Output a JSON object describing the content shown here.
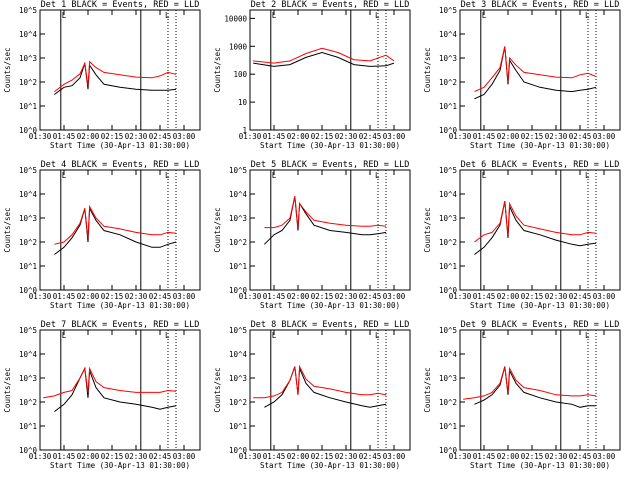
{
  "figure": {
    "x_tick_labels": [
      "01:30",
      "01:45",
      "02:00",
      "02:15",
      "02:30",
      "02:45",
      "03:00"
    ],
    "xlabel": "Start Time (30-Apr-13 01:30:00)",
    "ylabel": "Counts/sec",
    "colors": {
      "events": "#000000",
      "lld": "#ff0000"
    },
    "marker_label": "L"
  },
  "chart_data": [
    {
      "type": "line",
      "title": "Det 1 BLACK = Events, RED = LLD",
      "xlabel": "Start Time (30-Apr-13 01:30:00)",
      "ylabel": "Counts/sec",
      "ylog": true,
      "ylim": [
        1,
        100000
      ],
      "y_tick_labels": [
        "10^0",
        "10^1",
        "10^2",
        "10^3",
        "10^4",
        "10^5"
      ],
      "x": [
        "01:39",
        "01:45",
        "01:50",
        "01:55",
        "01:58",
        "02:00",
        "02:01",
        "02:05",
        "02:10",
        "02:20",
        "02:30",
        "02:40",
        "02:45",
        "02:50",
        "02:55"
      ],
      "series": [
        {
          "name": "Events",
          "values": [
            30,
            60,
            70,
            150,
            600,
            50,
            500,
            200,
            80,
            60,
            50,
            45,
            45,
            45,
            50
          ]
        },
        {
          "name": "LLD",
          "values": [
            40,
            80,
            120,
            220,
            600,
            70,
            700,
            400,
            250,
            200,
            160,
            150,
            180,
            250,
            210
          ]
        }
      ],
      "vlines_solid": [
        "01:43",
        "02:33"
      ],
      "vlines_dotted": [
        "02:50",
        "02:55"
      ]
    },
    {
      "type": "line",
      "title": "Det 2 BLACK = Events, RED = LLD",
      "xlabel": "Start Time (30-Apr-13 01:30:00)",
      "ylabel": "Counts/sec",
      "ylog": true,
      "ylim": [
        1,
        20000
      ],
      "y_tick_labels": [
        "1",
        "10",
        "100",
        "1000",
        "10000"
      ],
      "x": [
        "01:32",
        "01:45",
        "01:55",
        "02:05",
        "02:15",
        "02:25",
        "02:35",
        "02:45",
        "02:55",
        "03:00"
      ],
      "series": [
        {
          "name": "Events",
          "values": [
            250,
            190,
            220,
            400,
            600,
            400,
            220,
            190,
            200,
            250
          ]
        },
        {
          "name": "LLD",
          "values": [
            300,
            250,
            300,
            550,
            850,
            600,
            330,
            300,
            480,
            300
          ]
        }
      ],
      "vlines_solid": [
        "01:43",
        "02:33"
      ],
      "vlines_dotted": [
        "02:50",
        "02:55"
      ]
    },
    {
      "type": "line",
      "title": "Det 3 BLACK = Events, RED = LLD",
      "xlabel": "Start Time (30-Apr-13 01:30:00)",
      "ylabel": "Counts/sec",
      "ylog": true,
      "ylim": [
        1,
        100000
      ],
      "y_tick_labels": [
        "10^0",
        "10^1",
        "10^2",
        "10^3",
        "10^4",
        "10^5"
      ],
      "x": [
        "01:39",
        "01:45",
        "01:50",
        "01:55",
        "01:58",
        "02:00",
        "02:01",
        "02:05",
        "02:10",
        "02:20",
        "02:30",
        "02:40",
        "02:45",
        "02:50",
        "02:55"
      ],
      "series": [
        {
          "name": "Events",
          "values": [
            20,
            30,
            80,
            300,
            3000,
            80,
            800,
            300,
            100,
            60,
            45,
            40,
            45,
            50,
            60
          ]
        },
        {
          "name": "LLD",
          "values": [
            40,
            60,
            150,
            400,
            3000,
            100,
            1000,
            500,
            250,
            200,
            160,
            150,
            200,
            230,
            170
          ]
        }
      ],
      "vlines_solid": [
        "01:43",
        "02:33"
      ],
      "vlines_dotted": [
        "02:50",
        "02:55"
      ]
    },
    {
      "type": "line",
      "title": "Det 4 BLACK = Events, RED = LLD",
      "xlabel": "Start Time (30-Apr-13 01:30:00)",
      "ylabel": "Counts/sec",
      "ylog": true,
      "ylim": [
        1,
        100000
      ],
      "y_tick_labels": [
        "10^0",
        "10^1",
        "10^2",
        "10^3",
        "10^4",
        "10^5"
      ],
      "x": [
        "01:39",
        "01:45",
        "01:50",
        "01:55",
        "01:58",
        "02:00",
        "02:01",
        "02:05",
        "02:10",
        "02:20",
        "02:30",
        "02:40",
        "02:45",
        "02:50",
        "02:55"
      ],
      "series": [
        {
          "name": "Events",
          "values": [
            30,
            60,
            150,
            500,
            2500,
            100,
            2500,
            800,
            300,
            200,
            100,
            60,
            60,
            80,
            100
          ]
        },
        {
          "name": "LLD",
          "values": [
            80,
            100,
            200,
            600,
            2500,
            150,
            3000,
            1000,
            450,
            350,
            250,
            200,
            200,
            250,
            230
          ]
        }
      ],
      "vlines_solid": [
        "01:43",
        "02:33"
      ],
      "vlines_dotted": [
        "02:50",
        "02:55"
      ]
    },
    {
      "type": "line",
      "title": "Det 5 BLACK = Events, RED = LLD",
      "xlabel": "Start Time (30-Apr-13 01:30:00)",
      "ylabel": "Counts/sec",
      "ylog": true,
      "ylim": [
        1,
        100000
      ],
      "y_tick_labels": [
        "10^0",
        "10^1",
        "10^2",
        "10^3",
        "10^4",
        "10^5"
      ],
      "x": [
        "01:39",
        "01:45",
        "01:50",
        "01:55",
        "01:58",
        "02:00",
        "02:01",
        "02:05",
        "02:10",
        "02:20",
        "02:30",
        "02:40",
        "02:45",
        "02:50",
        "02:55"
      ],
      "series": [
        {
          "name": "Events",
          "values": [
            80,
            200,
            300,
            800,
            8000,
            300,
            4000,
            1500,
            500,
            300,
            250,
            200,
            200,
            220,
            250
          ]
        },
        {
          "name": "LLD",
          "values": [
            400,
            400,
            500,
            1000,
            8000,
            400,
            4000,
            1800,
            800,
            600,
            500,
            450,
            450,
            500,
            450
          ]
        }
      ],
      "vlines_solid": [
        "01:43",
        "02:33"
      ],
      "vlines_dotted": [
        "02:50",
        "02:55"
      ]
    },
    {
      "type": "line",
      "title": "Det 6 BLACK = Events, RED = LLD",
      "xlabel": "Start Time (30-Apr-13 01:30:00)",
      "ylabel": "Counts/sec",
      "ylog": true,
      "ylim": [
        1,
        100000
      ],
      "y_tick_labels": [
        "10^0",
        "10^1",
        "10^2",
        "10^3",
        "10^4",
        "10^5"
      ],
      "x": [
        "01:39",
        "01:45",
        "01:50",
        "01:55",
        "01:58",
        "02:00",
        "02:01",
        "02:05",
        "02:10",
        "02:20",
        "02:30",
        "02:40",
        "02:45",
        "02:50",
        "02:55"
      ],
      "series": [
        {
          "name": "Events",
          "values": [
            30,
            60,
            150,
            500,
            5000,
            150,
            3000,
            800,
            300,
            200,
            120,
            80,
            70,
            80,
            90
          ]
        },
        {
          "name": "LLD",
          "values": [
            100,
            200,
            250,
            600,
            5000,
            200,
            4000,
            1200,
            500,
            350,
            250,
            200,
            200,
            250,
            230
          ]
        }
      ],
      "vlines_solid": [
        "01:43",
        "02:33"
      ],
      "vlines_dotted": [
        "02:50",
        "02:55"
      ]
    },
    {
      "type": "line",
      "title": "Det 7 BLACK = Events, RED = LLD",
      "xlabel": "Start Time (30-Apr-13 01:30:00)",
      "ylabel": "Counts/sec",
      "ylog": true,
      "ylim": [
        1,
        100000
      ],
      "y_tick_labels": [
        "10^0",
        "10^1",
        "10^2",
        "10^3",
        "10^4",
        "10^5"
      ],
      "x": [
        "01:32",
        "01:39",
        "01:45",
        "01:50",
        "01:55",
        "01:58",
        "02:00",
        "02:01",
        "02:05",
        "02:10",
        "02:20",
        "02:30",
        "02:40",
        "02:45",
        "02:50",
        "02:55"
      ],
      "series": [
        {
          "name": "Events",
          "values": [
            null,
            40,
            80,
            200,
            1000,
            2500,
            150,
            2000,
            400,
            150,
            100,
            80,
            60,
            50,
            60,
            70
          ]
        },
        {
          "name": "LLD",
          "values": [
            150,
            180,
            250,
            300,
            1000,
            2500,
            250,
            2500,
            700,
            400,
            300,
            250,
            250,
            250,
            300,
            280
          ]
        }
      ],
      "vlines_solid": [
        "01:43",
        "02:33"
      ],
      "vlines_dotted": [
        "02:50",
        "02:55"
      ]
    },
    {
      "type": "line",
      "title": "Det 8 BLACK = Events, RED = LLD",
      "xlabel": "Start Time (30-Apr-13 01:30:00)",
      "ylabel": "Counts/sec",
      "ylog": true,
      "ylim": [
        1,
        100000
      ],
      "y_tick_labels": [
        "10^0",
        "10^1",
        "10^2",
        "10^3",
        "10^4",
        "10^5"
      ],
      "x": [
        "01:32",
        "01:39",
        "01:45",
        "01:50",
        "01:55",
        "01:58",
        "02:00",
        "02:01",
        "02:05",
        "02:10",
        "02:20",
        "02:30",
        "02:40",
        "02:45",
        "02:50",
        "02:55"
      ],
      "series": [
        {
          "name": "Events",
          "values": [
            null,
            60,
            100,
            200,
            800,
            3000,
            200,
            2500,
            600,
            250,
            150,
            100,
            70,
            60,
            70,
            80
          ]
        },
        {
          "name": "LLD",
          "values": [
            150,
            150,
            180,
            250,
            800,
            3000,
            200,
            3000,
            900,
            450,
            350,
            250,
            200,
            200,
            230,
            200
          ]
        }
      ],
      "vlines_solid": [
        "01:43",
        "02:33"
      ],
      "vlines_dotted": [
        "02:50",
        "02:55"
      ]
    },
    {
      "type": "line",
      "title": "Det 9 BLACK = Events, RED = LLD",
      "xlabel": "Start Time (30-Apr-13 01:30:00)",
      "ylabel": "Counts/sec",
      "ylog": true,
      "ylim": [
        1,
        100000
      ],
      "y_tick_labels": [
        "10^0",
        "10^1",
        "10^2",
        "10^3",
        "10^4",
        "10^5"
      ],
      "x": [
        "01:32",
        "01:39",
        "01:45",
        "01:50",
        "01:55",
        "01:58",
        "02:00",
        "02:01",
        "02:05",
        "02:10",
        "02:20",
        "02:30",
        "02:40",
        "02:45",
        "02:50",
        "02:55"
      ],
      "series": [
        {
          "name": "Events",
          "values": [
            null,
            80,
            120,
            200,
            500,
            3000,
            200,
            2000,
            600,
            250,
            150,
            100,
            80,
            60,
            70,
            70
          ]
        },
        {
          "name": "LLD",
          "values": [
            130,
            150,
            180,
            250,
            600,
            3000,
            250,
            2500,
            800,
            400,
            300,
            200,
            180,
            180,
            200,
            180
          ]
        }
      ],
      "vlines_solid": [
        "01:43",
        "02:33"
      ],
      "vlines_dotted": [
        "02:50",
        "02:55"
      ]
    }
  ]
}
